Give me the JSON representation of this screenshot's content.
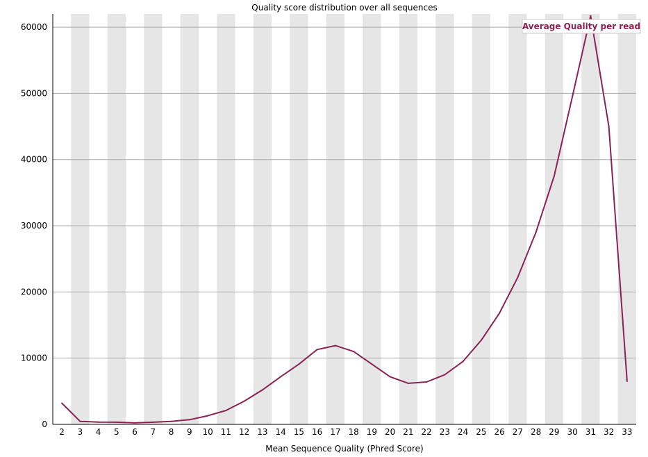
{
  "chart_data": {
    "type": "line",
    "title": "Quality score distribution over all sequences",
    "xlabel": "Mean Sequence Quality (Phred Score)",
    "ylabel": "",
    "x": [
      2,
      3,
      4,
      5,
      6,
      7,
      8,
      9,
      10,
      11,
      12,
      13,
      14,
      15,
      16,
      17,
      18,
      19,
      20,
      21,
      22,
      23,
      24,
      25,
      26,
      27,
      28,
      29,
      30,
      31,
      32,
      33
    ],
    "series": [
      {
        "name": "Average Quality per read",
        "color": "#8b2252",
        "values": [
          3200,
          450,
          350,
          330,
          220,
          320,
          450,
          700,
          1300,
          2100,
          3500,
          5200,
          7200,
          9100,
          11300,
          11900,
          11000,
          9100,
          7200,
          6200,
          6400,
          7500,
          9500,
          12700,
          16800,
          22200,
          29000,
          37500,
          49500,
          61700,
          45000,
          6500
        ]
      }
    ],
    "ylim": [
      0,
      62000
    ],
    "yticks": [
      0,
      10000,
      20000,
      30000,
      40000,
      50000,
      60000
    ],
    "grid": true,
    "stripes": "alternating-gray",
    "legend_position": "top-right"
  }
}
